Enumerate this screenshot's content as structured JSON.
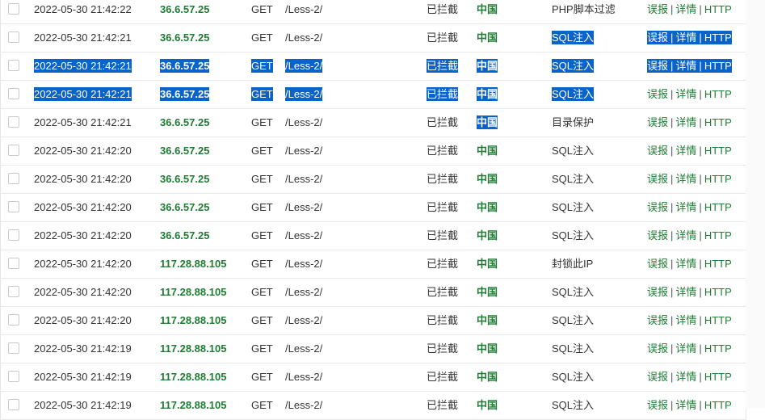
{
  "log_table": {
    "rows": [
      {
        "time": "2022-05-30 21:42:22",
        "ip": "36.6.57.25",
        "method": "GET",
        "path": "/Less-2/",
        "status": "已拦截",
        "country": "中国",
        "type": "PHP脚本过滤",
        "op_report": "误报",
        "op_detail": "详情",
        "op_http": "HTTP",
        "sep": "|"
      },
      {
        "time": "2022-05-30 21:42:21",
        "ip": "36.6.57.25",
        "method": "GET",
        "path": "/Less-2/",
        "status": "已拦截",
        "country": "中国",
        "type": "SQL注入",
        "op_report": "误报",
        "op_detail": "详情",
        "op_http": "HTTP",
        "sep": "|"
      },
      {
        "time": "2022-05-30 21:42:21",
        "ip": "36.6.57.25",
        "method": "GET",
        "path": "/Less-2/",
        "status": "已拦截",
        "country": "中国",
        "type": "SQL注入",
        "op_report": "误报",
        "op_detail": "详情",
        "op_http": "HTTP",
        "sep": "|"
      },
      {
        "time": "2022-05-30 21:42:21",
        "ip": "36.6.57.25",
        "method": "GET",
        "path": "/Less-2/",
        "status": "已拦截",
        "country": "中国",
        "type": "SQL注入",
        "op_report": "误报",
        "op_detail": "详情",
        "op_http": "HTTP",
        "sep": "|"
      },
      {
        "time": "2022-05-30 21:42:21",
        "ip": "36.6.57.25",
        "method": "GET",
        "path": "/Less-2/",
        "status": "已拦截",
        "country": "中国",
        "type": "目录保护",
        "op_report": "误报",
        "op_detail": "详情",
        "op_http": "HTTP",
        "sep": "|"
      },
      {
        "time": "2022-05-30 21:42:20",
        "ip": "36.6.57.25",
        "method": "GET",
        "path": "/Less-2/",
        "status": "已拦截",
        "country": "中国",
        "type": "SQL注入",
        "op_report": "误报",
        "op_detail": "详情",
        "op_http": "HTTP",
        "sep": "|"
      },
      {
        "time": "2022-05-30 21:42:20",
        "ip": "36.6.57.25",
        "method": "GET",
        "path": "/Less-2/",
        "status": "已拦截",
        "country": "中国",
        "type": "SQL注入",
        "op_report": "误报",
        "op_detail": "详情",
        "op_http": "HTTP",
        "sep": "|"
      },
      {
        "time": "2022-05-30 21:42:20",
        "ip": "36.6.57.25",
        "method": "GET",
        "path": "/Less-2/",
        "status": "已拦截",
        "country": "中国",
        "type": "SQL注入",
        "op_report": "误报",
        "op_detail": "详情",
        "op_http": "HTTP",
        "sep": "|"
      },
      {
        "time": "2022-05-30 21:42:20",
        "ip": "36.6.57.25",
        "method": "GET",
        "path": "/Less-2/",
        "status": "已拦截",
        "country": "中国",
        "type": "SQL注入",
        "op_report": "误报",
        "op_detail": "详情",
        "op_http": "HTTP",
        "sep": "|"
      },
      {
        "time": "2022-05-30 21:42:20",
        "ip": "117.28.88.105",
        "method": "GET",
        "path": "/Less-2/",
        "status": "已拦截",
        "country": "中国",
        "type": "封锁此IP",
        "op_report": "误报",
        "op_detail": "详情",
        "op_http": "HTTP",
        "sep": "|"
      },
      {
        "time": "2022-05-30 21:42:20",
        "ip": "117.28.88.105",
        "method": "GET",
        "path": "/Less-2/",
        "status": "已拦截",
        "country": "中国",
        "type": "SQL注入",
        "op_report": "误报",
        "op_detail": "详情",
        "op_http": "HTTP",
        "sep": "|"
      },
      {
        "time": "2022-05-30 21:42:20",
        "ip": "117.28.88.105",
        "method": "GET",
        "path": "/Less-2/",
        "status": "已拦截",
        "country": "中国",
        "type": "SQL注入",
        "op_report": "误报",
        "op_detail": "详情",
        "op_http": "HTTP",
        "sep": "|"
      },
      {
        "time": "2022-05-30 21:42:19",
        "ip": "117.28.88.105",
        "method": "GET",
        "path": "/Less-2/",
        "status": "已拦截",
        "country": "中国",
        "type": "SQL注入",
        "op_report": "误报",
        "op_detail": "详情",
        "op_http": "HTTP",
        "sep": "|"
      },
      {
        "time": "2022-05-30 21:42:19",
        "ip": "117.28.88.105",
        "method": "GET",
        "path": "/Less-2/",
        "status": "已拦截",
        "country": "中国",
        "type": "SQL注入",
        "op_report": "误报",
        "op_detail": "详情",
        "op_http": "HTTP",
        "sep": "|"
      },
      {
        "time": "2022-05-30 21:42:19",
        "ip": "117.28.88.105",
        "method": "GET",
        "path": "/Less-2/",
        "status": "已拦截",
        "country": "中国",
        "type": "SQL注入",
        "op_report": "误报",
        "op_detail": "详情",
        "op_http": "HTTP",
        "sep": "|"
      }
    ]
  }
}
